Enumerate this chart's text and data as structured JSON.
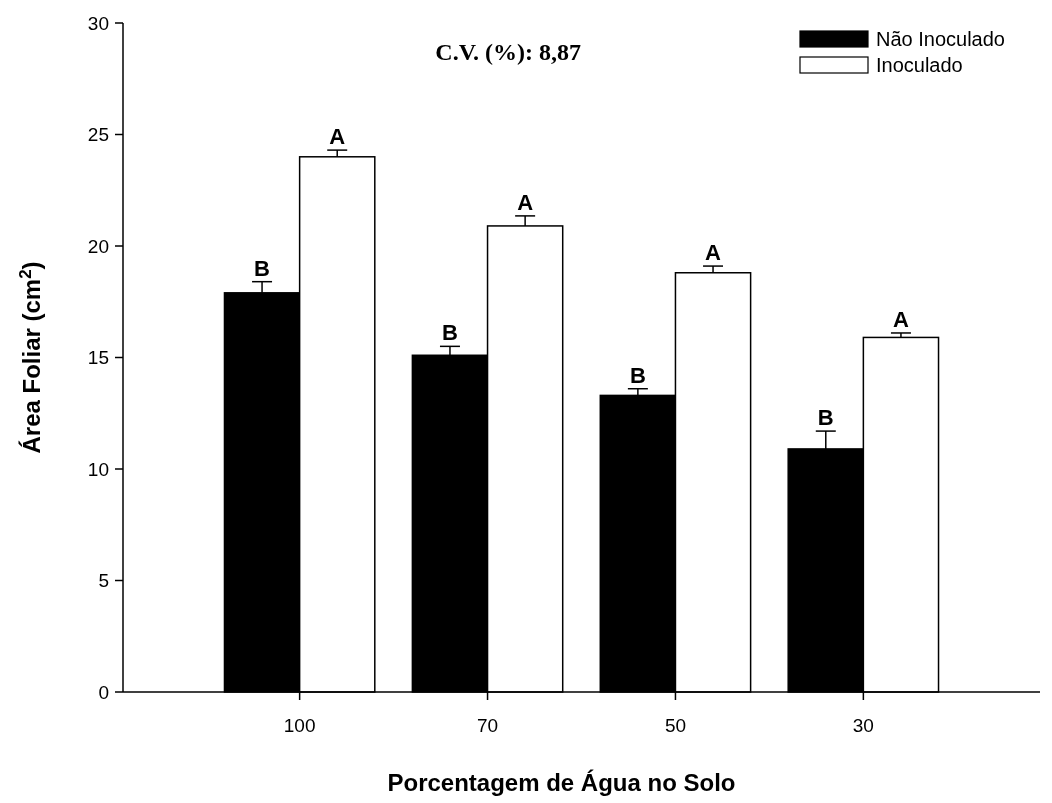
{
  "chart_data": {
    "type": "bar",
    "xlabel": "Porcentagem de Água no Solo",
    "ylabel": "Área Foliar (cm$^{2}$)",
    "categories": [
      "100",
      "70",
      "50",
      "30"
    ],
    "series": [
      {
        "name": "Não Inoculado",
        "color": "#000000",
        "values": [
          17.9,
          15.1,
          13.3,
          10.9
        ],
        "errors": [
          0.5,
          0.4,
          0.3,
          0.8
        ]
      },
      {
        "name": "Inoculado",
        "color": "#ffffff",
        "values": [
          24.0,
          20.9,
          18.8,
          15.9
        ],
        "errors": [
          0.3,
          0.45,
          0.3,
          0.2
        ]
      }
    ],
    "ylim": [
      0,
      30
    ],
    "yticks": [
      0,
      5,
      10,
      15,
      20,
      25,
      30
    ],
    "legend": "top right",
    "annotations": [
      "C.V. (%): 8,87",
      {
        "text": "B",
        "x": "100",
        "y": 17.9
      },
      {
        "text": "A",
        "x": "100",
        "y": 24.0
      },
      {
        "text": "B",
        "x": "70",
        "y": 15.1
      },
      {
        "text": "A",
        "x": "70",
        "y": 20.9
      },
      {
        "text": "B",
        "x": "50",
        "y": 13.3
      },
      {
        "text": "A",
        "x": "50",
        "y": 18.8
      },
      {
        "text": "B",
        "x": "30",
        "y": 10.9
      },
      {
        "text": "A",
        "x": "30",
        "y": 15.9
      }
    ]
  }
}
